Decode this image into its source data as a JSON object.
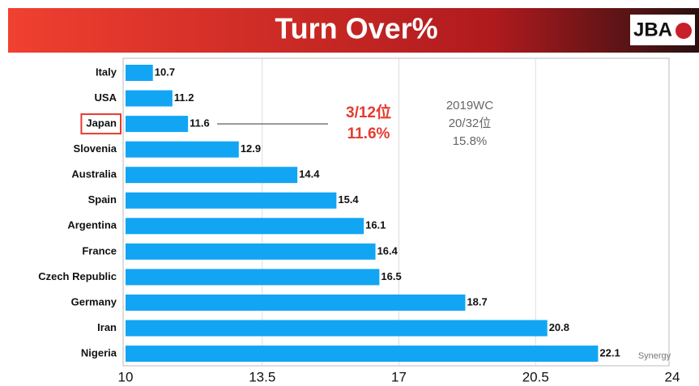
{
  "logo": "JBA",
  "chart_data": {
    "type": "barh",
    "title": "Turn Over%",
    "categories": [
      "Italy",
      "USA",
      "Japan",
      "Slovenia",
      "Australia",
      "Spain",
      "Argentina",
      "France",
      "Czech Republic",
      "Germany",
      "Iran",
      "Nigeria"
    ],
    "values": [
      10.7,
      11.2,
      11.6,
      12.9,
      14.4,
      15.4,
      16.1,
      16.4,
      16.5,
      18.7,
      20.8,
      22.1
    ],
    "color": "#12a5f4",
    "highlight": 2,
    "highlight_color": "#e53a2f",
    "xlim": [
      10,
      24
    ],
    "xticks": [
      10,
      13.5,
      17,
      20.5,
      24
    ],
    "grid": true,
    "annotations": [
      "3/12位",
      "11.6%"
    ],
    "note": [
      "2019WC",
      "20/32位",
      "15.8%"
    ],
    "source": "Synergy"
  }
}
